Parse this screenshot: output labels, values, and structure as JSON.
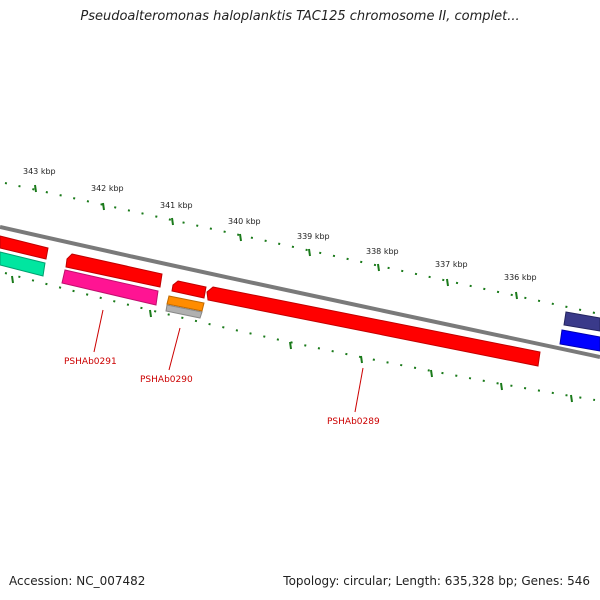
{
  "title": "Pseudoalteromonas haloplanktis TAC125 chromosome II, complet...",
  "footer": {
    "accession": "Accession: NC_007482",
    "summary": "Topology: circular; Length: 635,328 bp; Genes: 546"
  },
  "scale_labels": [
    "343 kbp",
    "342 kbp",
    "341 kbp",
    "340 kbp",
    "339 kbp",
    "338 kbp",
    "337 kbp",
    "336 kbp"
  ],
  "gene_labels": [
    "PSHAb0291",
    "PSHAb0290",
    "PSHAb0289"
  ],
  "colors": {
    "backbone": "#7a7a7a",
    "gene_red": "#ff0000",
    "gene_magenta": "#ff1493",
    "gene_teal": "#00e6a0",
    "gene_orange": "#ff8c00",
    "gene_gray": "#b0b0b0",
    "gene_blue": "#0000ff",
    "gene_navy": "#3a3a8a",
    "tick_green": "#1a7a1a",
    "label_red": "#cc0000"
  }
}
